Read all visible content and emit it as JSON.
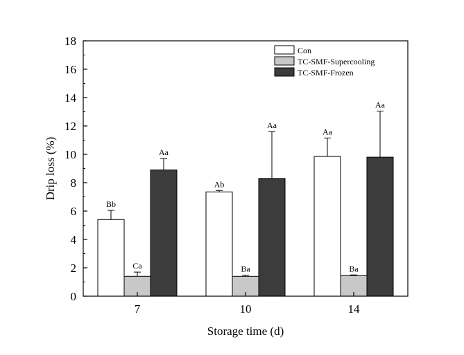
{
  "chart_data": {
    "type": "bar",
    "title": "",
    "xlabel": "Storage time (d)",
    "ylabel": "Drip loss (%)",
    "categories": [
      "7",
      "10",
      "14"
    ],
    "ylim": [
      0,
      18
    ],
    "yticks": [
      0,
      2,
      4,
      6,
      8,
      10,
      12,
      14,
      16,
      18
    ],
    "legend_position": "top-right",
    "series": [
      {
        "name": "Con",
        "color": "#ffffff",
        "values": [
          5.4,
          7.35,
          9.85
        ],
        "errors": [
          0.65,
          0.1,
          1.3
        ],
        "labels": [
          "Bb",
          "Ab",
          "Aa"
        ]
      },
      {
        "name": "TC-SMF-Supercooling",
        "color": "#c8c8c8",
        "values": [
          1.4,
          1.4,
          1.45
        ],
        "errors": [
          0.3,
          0.08,
          0.05
        ],
        "labels": [
          "Ca",
          "Ba",
          "Ba"
        ]
      },
      {
        "name": "TC-SMF-Frozen",
        "color": "#3c3c3c",
        "values": [
          8.9,
          8.3,
          9.8
        ],
        "errors": [
          0.8,
          3.3,
          3.25
        ],
        "labels": [
          "Aa",
          "Aa",
          "Aa"
        ]
      }
    ]
  }
}
